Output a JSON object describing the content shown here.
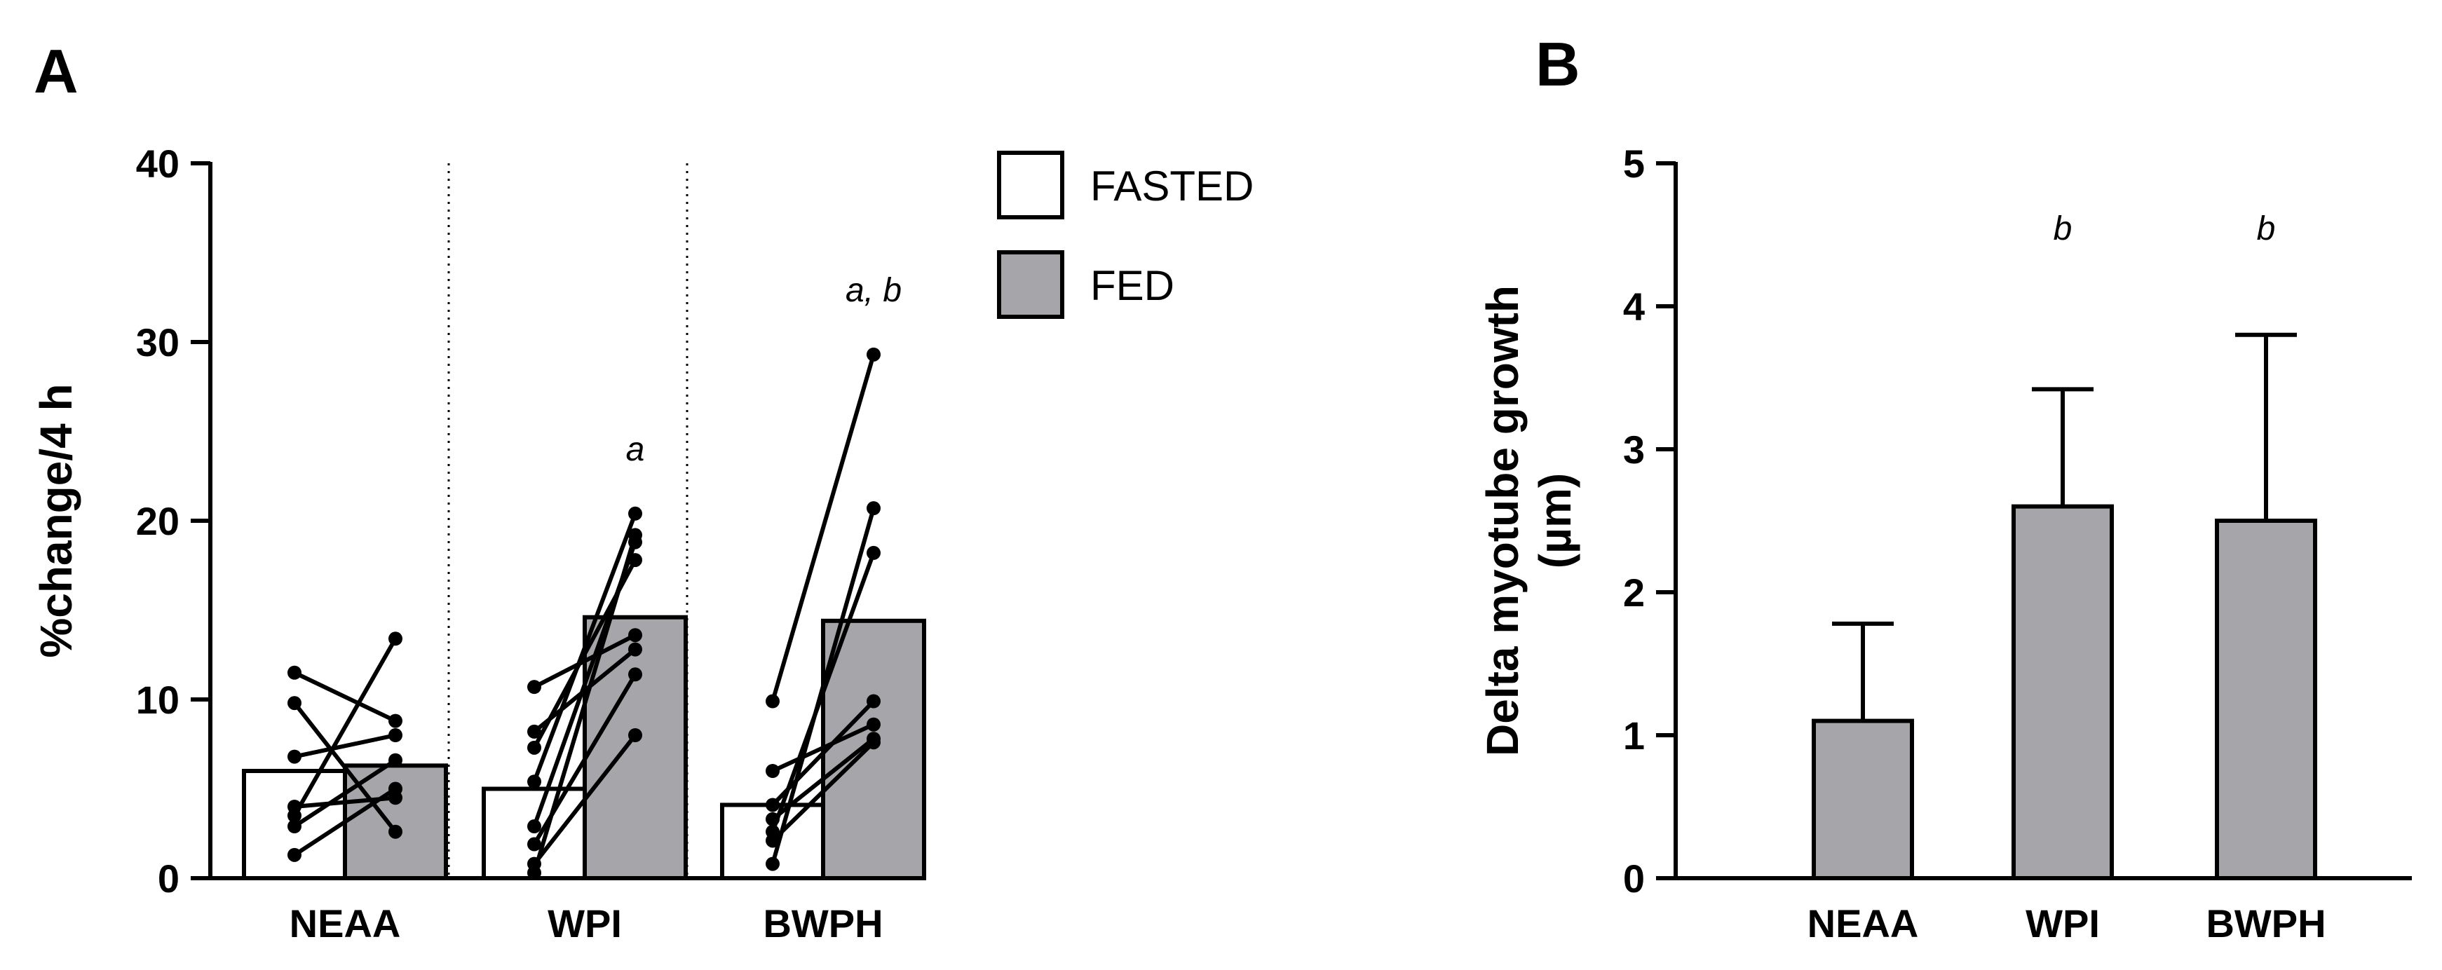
{
  "colors": {
    "fasted": "#ffffff",
    "fed": "#a5a5aa",
    "stroke": "#000000"
  },
  "panel_labels": {
    "a": "A",
    "b": "B"
  },
  "chart_data": [
    {
      "type": "bar",
      "panel": "A",
      "categories": [
        "NEAA",
        "WPI",
        "BWPH"
      ],
      "ylabel": "%change/4 h",
      "xlabel": "",
      "ylim": [
        0,
        40
      ],
      "yticks": [
        0,
        10,
        20,
        30,
        40
      ],
      "ytick_labels": [
        "0",
        "10",
        "20",
        "30",
        "40"
      ],
      "legend": {
        "position": "top-right",
        "entries": [
          "FASTED",
          "FED"
        ]
      },
      "series": [
        {
          "name": "FASTED",
          "values": [
            6.0,
            5.0,
            4.1
          ]
        },
        {
          "name": "FED",
          "values": [
            6.3,
            14.6,
            14.4
          ]
        }
      ],
      "paired_points": [
        [
          [
            11.5,
            8.8
          ],
          [
            9.8,
            2.6
          ],
          [
            6.8,
            8.0
          ],
          [
            4.0,
            4.5
          ],
          [
            3.5,
            13.4
          ],
          [
            2.9,
            6.6
          ],
          [
            1.3,
            5.0
          ]
        ],
        [
          [
            10.7,
            13.6
          ],
          [
            8.2,
            12.8
          ],
          [
            7.3,
            17.8
          ],
          [
            5.4,
            20.4
          ],
          [
            2.9,
            18.8
          ],
          [
            1.9,
            11.4
          ],
          [
            0.8,
            8.0
          ],
          [
            0.3,
            19.2
          ]
        ],
        [
          [
            9.9,
            29.3
          ],
          [
            6.0,
            8.6
          ],
          [
            4.1,
            9.9
          ],
          [
            3.3,
            7.8
          ],
          [
            2.6,
            18.2
          ],
          [
            2.1,
            7.6
          ],
          [
            0.8,
            20.7
          ]
        ]
      ],
      "annotations": [
        "",
        "a",
        "a, b"
      ]
    },
    {
      "type": "bar",
      "panel": "B",
      "categories": [
        "NEAA",
        "WPI",
        "BWPH"
      ],
      "values": [
        1.1,
        2.6,
        2.5
      ],
      "error_upper": [
        1.78,
        3.42,
        3.8
      ],
      "ylabel_line1": "Delta myotube growth",
      "ylabel_line2": "(µm)",
      "xlabel": "",
      "ylim": [
        0,
        5
      ],
      "yticks": [
        0,
        1,
        2,
        3,
        4,
        5
      ],
      "ytick_labels": [
        "0",
        "1",
        "2",
        "3",
        "4",
        "5"
      ],
      "annotations": [
        "",
        "b",
        "b"
      ]
    }
  ]
}
